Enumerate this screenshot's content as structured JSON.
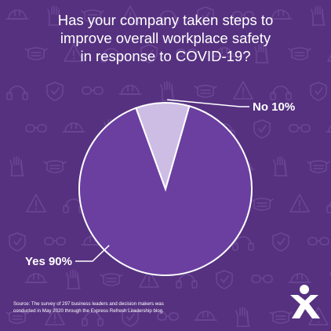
{
  "colors": {
    "background": "#563180",
    "pattern": "#6a4795",
    "yes_slice": "#6b3fa0",
    "no_slice": "#cdbde5",
    "slice_border": "#ffffff",
    "text": "#ffffff"
  },
  "header": {
    "title_lines": [
      "Has your company taken steps to",
      "improve overall workplace safety",
      "in response to COVID-19?"
    ]
  },
  "chart_data": {
    "type": "pie",
    "title": "Has your company taken steps to improve overall workplace safety in response to COVID-19?",
    "categories": [
      "Yes",
      "No"
    ],
    "values": [
      90,
      10
    ],
    "labels": [
      "Yes 90%",
      "No 10%"
    ],
    "colors": [
      "#6b3fa0",
      "#cdbde5"
    ]
  },
  "footer": {
    "source_lines": [
      "Source: The survey of 297 business leaders and decision makers was",
      "conducted in May 2020 through the Express Refresh Leadership blog."
    ]
  },
  "background_icons": [
    "hardhat-icon",
    "shield-icon",
    "warning-sign-icon",
    "glove-icon",
    "goggles-icon",
    "ear-protection-icon",
    "face-mask-icon"
  ],
  "logo_icon": "express-logo-icon"
}
